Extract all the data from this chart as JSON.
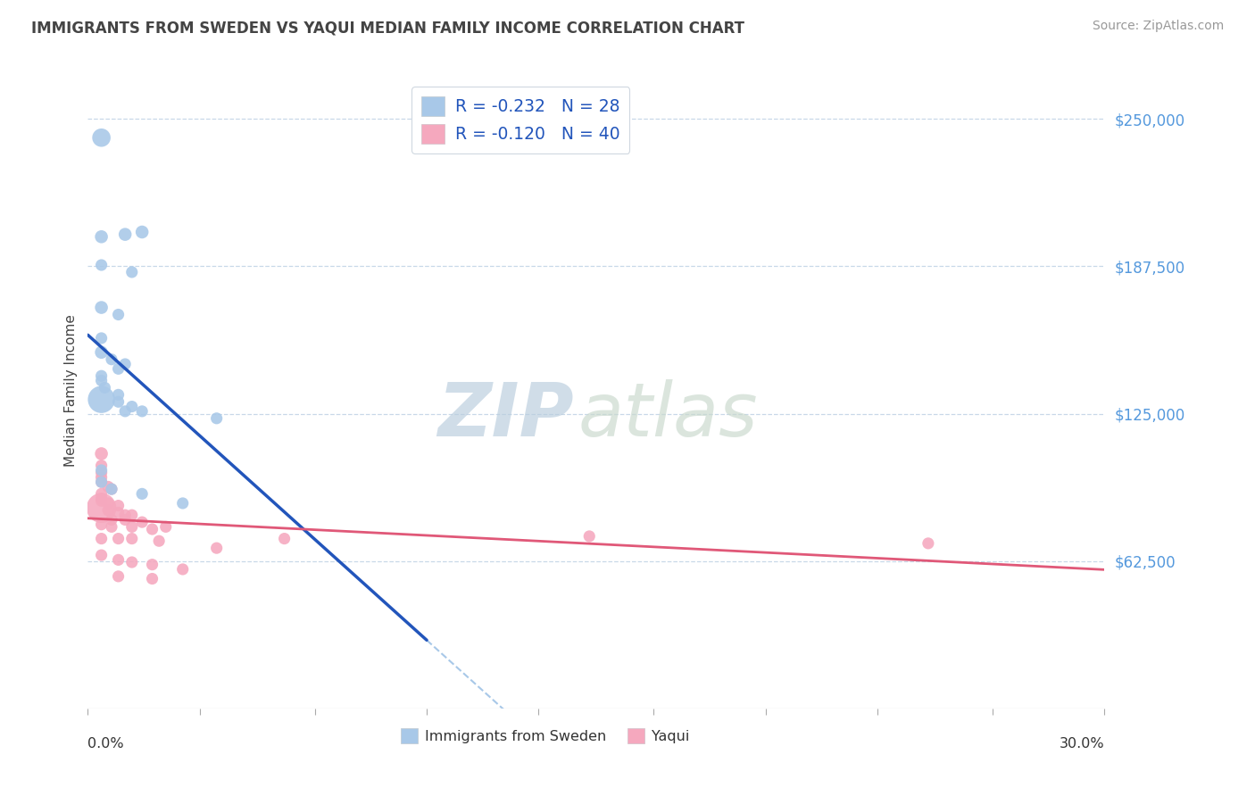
{
  "title": "IMMIGRANTS FROM SWEDEN VS YAQUI MEDIAN FAMILY INCOME CORRELATION CHART",
  "source": "Source: ZipAtlas.com",
  "ylabel": "Median Family Income",
  "y_tick_labels": [
    "$62,500",
    "$125,000",
    "$187,500",
    "$250,000"
  ],
  "y_tick_values": [
    62500,
    125000,
    187500,
    250000
  ],
  "xlim": [
    0.0,
    0.3
  ],
  "ylim": [
    0,
    270000
  ],
  "legend_r1": "R = -0.232",
  "legend_n1": "N = 28",
  "legend_r2": "R = -0.120",
  "legend_n2": "N = 40",
  "legend_label1": "Immigrants from Sweden",
  "legend_label2": "Yaqui",
  "sweden_color": "#a8c8e8",
  "yaqui_color": "#f5a8be",
  "sweden_line_color": "#2255bb",
  "yaqui_line_color": "#e05878",
  "dashed_line_color": "#a8c8e8",
  "background_color": "#ffffff",
  "grid_color": "#c8d8e8",
  "title_color": "#444444",
  "source_color": "#999999",
  "ytick_color": "#5599dd",
  "xtick_label_color": "#333333",
  "ylabel_color": "#444444",
  "legend_text_color": "#2255bb",
  "watermark_zip_color": "#b8ccdd",
  "watermark_atlas_color": "#c8d8cc",
  "sweden_points": [
    [
      0.004,
      242000,
      22
    ],
    [
      0.004,
      200000,
      11
    ],
    [
      0.011,
      201000,
      11
    ],
    [
      0.016,
      202000,
      11
    ],
    [
      0.004,
      188000,
      9
    ],
    [
      0.013,
      185000,
      9
    ],
    [
      0.004,
      170000,
      11
    ],
    [
      0.009,
      167000,
      9
    ],
    [
      0.004,
      157000,
      9
    ],
    [
      0.004,
      151000,
      11
    ],
    [
      0.007,
      148000,
      9
    ],
    [
      0.009,
      144000,
      9
    ],
    [
      0.011,
      146000,
      9
    ],
    [
      0.004,
      141000,
      9
    ],
    [
      0.004,
      139000,
      9
    ],
    [
      0.005,
      136000,
      9
    ],
    [
      0.009,
      133000,
      9
    ],
    [
      0.004,
      131000,
      48
    ],
    [
      0.009,
      130000,
      9
    ],
    [
      0.013,
      128000,
      9
    ],
    [
      0.011,
      126000,
      9
    ],
    [
      0.016,
      126000,
      9
    ],
    [
      0.038,
      123000,
      9
    ],
    [
      0.004,
      101000,
      9
    ],
    [
      0.004,
      96000,
      9
    ],
    [
      0.007,
      93000,
      9
    ],
    [
      0.016,
      91000,
      9
    ],
    [
      0.028,
      87000,
      9
    ]
  ],
  "yaqui_points": [
    [
      0.004,
      108000,
      11
    ],
    [
      0.004,
      103000,
      9
    ],
    [
      0.004,
      100000,
      9
    ],
    [
      0.004,
      98000,
      9
    ],
    [
      0.004,
      96000,
      9
    ],
    [
      0.006,
      94000,
      9
    ],
    [
      0.007,
      93000,
      9
    ],
    [
      0.004,
      91000,
      9
    ],
    [
      0.004,
      89000,
      9
    ],
    [
      0.004,
      88000,
      9
    ],
    [
      0.006,
      87000,
      9
    ],
    [
      0.009,
      86000,
      9
    ],
    [
      0.004,
      85000,
      58
    ],
    [
      0.006,
      84000,
      9
    ],
    [
      0.009,
      83000,
      9
    ],
    [
      0.011,
      82000,
      9
    ],
    [
      0.013,
      82000,
      9
    ],
    [
      0.007,
      80000,
      9
    ],
    [
      0.011,
      80000,
      9
    ],
    [
      0.016,
      79000,
      9
    ],
    [
      0.004,
      78000,
      9
    ],
    [
      0.007,
      77000,
      9
    ],
    [
      0.013,
      77000,
      9
    ],
    [
      0.019,
      76000,
      9
    ],
    [
      0.023,
      77000,
      9
    ],
    [
      0.004,
      72000,
      9
    ],
    [
      0.009,
      72000,
      9
    ],
    [
      0.013,
      72000,
      9
    ],
    [
      0.021,
      71000,
      9
    ],
    [
      0.038,
      68000,
      9
    ],
    [
      0.004,
      65000,
      9
    ],
    [
      0.009,
      63000,
      9
    ],
    [
      0.013,
      62000,
      9
    ],
    [
      0.019,
      61000,
      9
    ],
    [
      0.028,
      59000,
      9
    ],
    [
      0.009,
      56000,
      9
    ],
    [
      0.019,
      55000,
      9
    ],
    [
      0.058,
      72000,
      9
    ],
    [
      0.148,
      73000,
      9
    ],
    [
      0.248,
      70000,
      9
    ]
  ],
  "sweden_line_x_end": 0.1,
  "dashed_line_x_start": 0.1,
  "dashed_line_x_end": 0.3,
  "num_xticks": 10,
  "xtick_positions": [
    0.0,
    0.033,
    0.067,
    0.1,
    0.133,
    0.167,
    0.2,
    0.233,
    0.267,
    0.3
  ]
}
